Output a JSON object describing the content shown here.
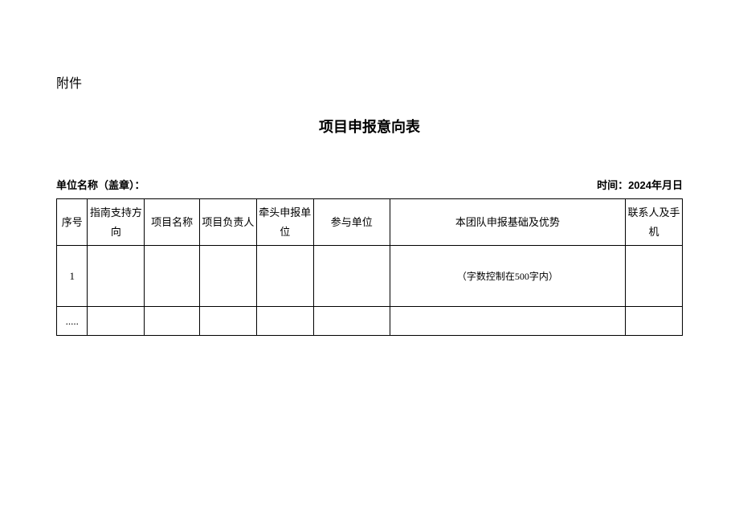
{
  "attachment_label": "附件",
  "title": "项目申报意向表",
  "meta": {
    "unit_label": "单位名称（盖章）：",
    "time_label": "时间：2024年月日"
  },
  "table": {
    "headers": {
      "seq": "序号",
      "direction": "指南支持方向",
      "project": "项目名称",
      "leader": "项目负责人",
      "lead_unit": "牵头申报单位",
      "participants": "参与单位",
      "advantage": "本团队申报基础及优势",
      "contact": "联系人及手机"
    },
    "rows": [
      {
        "seq": "1",
        "direction": "",
        "project": "",
        "leader": "",
        "lead_unit": "",
        "participants": "",
        "advantage": "（字数控制在500字内）",
        "contact": ""
      },
      {
        "seq": ".....",
        "direction": "",
        "project": "",
        "leader": "",
        "lead_unit": "",
        "participants": "",
        "advantage": "",
        "contact": ""
      }
    ]
  }
}
